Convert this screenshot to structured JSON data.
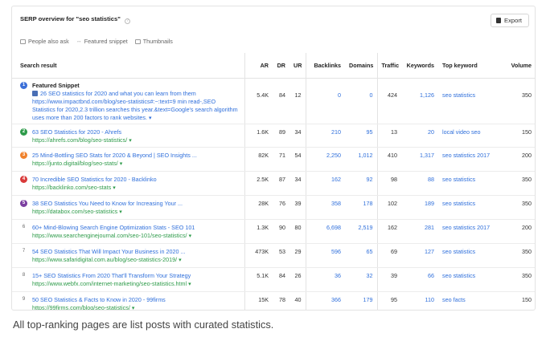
{
  "header": {
    "title": "SERP overview for \"seo statistics\"",
    "export_label": "Export"
  },
  "features": [
    {
      "label": "People also ask",
      "icon": "people-also-ask-icon"
    },
    {
      "label": "Featured snippet",
      "icon": "featured-snippet-icon"
    },
    {
      "label": "Thumbnails",
      "icon": "thumbnails-icon"
    }
  ],
  "columns": [
    "Search result",
    "AR",
    "DR",
    "UR",
    "Backlinks",
    "Domains",
    "Traffic",
    "Keywords",
    "Top keyword",
    "Volume"
  ],
  "rows": [
    {
      "rank": "1",
      "badge_color": "#3b6fd8",
      "label": "Featured Snippet",
      "title": "26 SEO statistics for 2020 and what you can learn from them",
      "snippet": "https://www.impactbnd.com/blog/seo-statistics#:~:text=9 min read-,SEO Statistics for 2020,2.3 trillion searches this year.&text=Google's search algorithm uses more than 200 factors to rank websites.",
      "url": "",
      "ar": "5.4K",
      "dr": "84",
      "ur": "12",
      "backlinks": "0",
      "domains": "0",
      "traffic": "424",
      "keywords": "1,126",
      "top_keyword": "seo statistics",
      "volume": "350"
    },
    {
      "rank": "2",
      "badge_color": "#2e9b4a",
      "title": "63 SEO Statistics for 2020 - Ahrefs",
      "url": "https://ahrefs.com/blog/seo-statistics/",
      "ar": "1.6K",
      "dr": "89",
      "ur": "34",
      "backlinks": "210",
      "domains": "95",
      "traffic": "13",
      "keywords": "20",
      "top_keyword": "local video seo",
      "volume": "150"
    },
    {
      "rank": "3",
      "badge_color": "#f0822d",
      "title": "25 Mind-Bottling SEO Stats for 2020 & Beyond | SEO Insights ...",
      "url": "https://junto.digital/blog/seo-stats/",
      "ar": "82K",
      "dr": "71",
      "ur": "54",
      "backlinks": "2,250",
      "domains": "1,012",
      "traffic": "410",
      "keywords": "1,317",
      "top_keyword": "seo statistics 2017",
      "volume": "200"
    },
    {
      "rank": "4",
      "badge_color": "#d93a3a",
      "title": "70 Incredible SEO Statistics for 2020 - Backlinko",
      "url": "https://backlinko.com/seo-stats",
      "ar": "2.5K",
      "dr": "87",
      "ur": "34",
      "backlinks": "162",
      "domains": "92",
      "traffic": "98",
      "keywords": "88",
      "top_keyword": "seo statistics",
      "volume": "350"
    },
    {
      "rank": "5",
      "badge_color": "#7b3fa0",
      "title": "38 SEO Statistics You Need to Know for Increasing Your ...",
      "url": "https://databox.com/seo-statistics",
      "ar": "28K",
      "dr": "76",
      "ur": "39",
      "backlinks": "358",
      "domains": "178",
      "traffic": "102",
      "keywords": "189",
      "top_keyword": "seo statistics",
      "volume": "350"
    },
    {
      "rank": "6",
      "badge_color": "",
      "title": "60+ Mind-Blowing Search Engine Optimization Stats - SEO 101",
      "url": "https://www.searchenginejournal.com/seo-101/seo-statistics/",
      "ar": "1.3K",
      "dr": "90",
      "ur": "80",
      "backlinks": "6,698",
      "domains": "2,519",
      "traffic": "162",
      "keywords": "281",
      "top_keyword": "seo statistics 2017",
      "volume": "200"
    },
    {
      "rank": "7",
      "badge_color": "",
      "title": "54 SEO Statistics That Will Impact Your Business in 2020 ...",
      "url": "https://www.safaridigital.com.au/blog/seo-statistics-2019/",
      "ar": "473K",
      "dr": "53",
      "ur": "29",
      "backlinks": "596",
      "domains": "65",
      "traffic": "69",
      "keywords": "127",
      "top_keyword": "seo statistics",
      "volume": "350"
    },
    {
      "rank": "8",
      "badge_color": "",
      "title": "15+ SEO Statistics From 2020 That'll Transform Your Strategy",
      "url": "https://www.webfx.com/internet-marketing/seo-statistics.html",
      "ar": "5.1K",
      "dr": "84",
      "ur": "26",
      "backlinks": "36",
      "domains": "32",
      "traffic": "39",
      "keywords": "66",
      "top_keyword": "seo statistics",
      "volume": "350"
    },
    {
      "rank": "9",
      "badge_color": "",
      "title": "50 SEO Statistics & Facts to Know in 2020 - 99firms",
      "url": "https://99firms.com/blog/seo-statistics/",
      "ar": "15K",
      "dr": "78",
      "ur": "40",
      "backlinks": "366",
      "domains": "179",
      "traffic": "95",
      "keywords": "110",
      "top_keyword": "seo facts",
      "volume": "150"
    }
  ],
  "caption": "All top-ranking pages are list posts with curated statistics."
}
